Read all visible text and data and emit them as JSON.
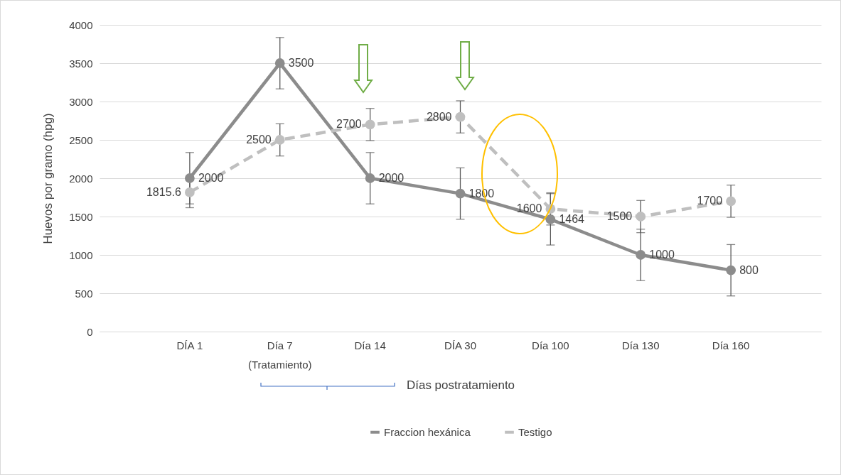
{
  "chart_data": {
    "type": "line",
    "xlabel": "Días postratamiento",
    "ylabel": "Huevos por gramo (hpg)",
    "categories": [
      "DÍA 1",
      "Día 7",
      "Día 14",
      "DÍA 30",
      "Día 100",
      "Día 130",
      "Día 160"
    ],
    "series": [
      {
        "name": "Fraccion hexánica",
        "color": "#8c8c8c",
        "line_style": "solid",
        "values": [
          2000,
          3500,
          2000,
          1800,
          1464,
          1000,
          800
        ],
        "errors": [
          335,
          335,
          335,
          335,
          335,
          335,
          335
        ]
      },
      {
        "name": "Testigo",
        "color": "#bfbfbf",
        "line_style": "dashed",
        "values": [
          1815.6,
          2500,
          2700,
          2800,
          1600,
          1500,
          1700
        ],
        "errors": [
          200,
          210,
          210,
          210,
          210,
          210,
          210
        ]
      }
    ],
    "ylim": [
      0,
      4000
    ],
    "yticks": [
      0,
      500,
      1000,
      1500,
      2000,
      2500,
      3000,
      3500,
      4000
    ],
    "grid": "y",
    "legend": "bottom",
    "marker": "circle",
    "data_labels": true,
    "annotations": [
      "(Tratamiento)"
    ]
  }
}
